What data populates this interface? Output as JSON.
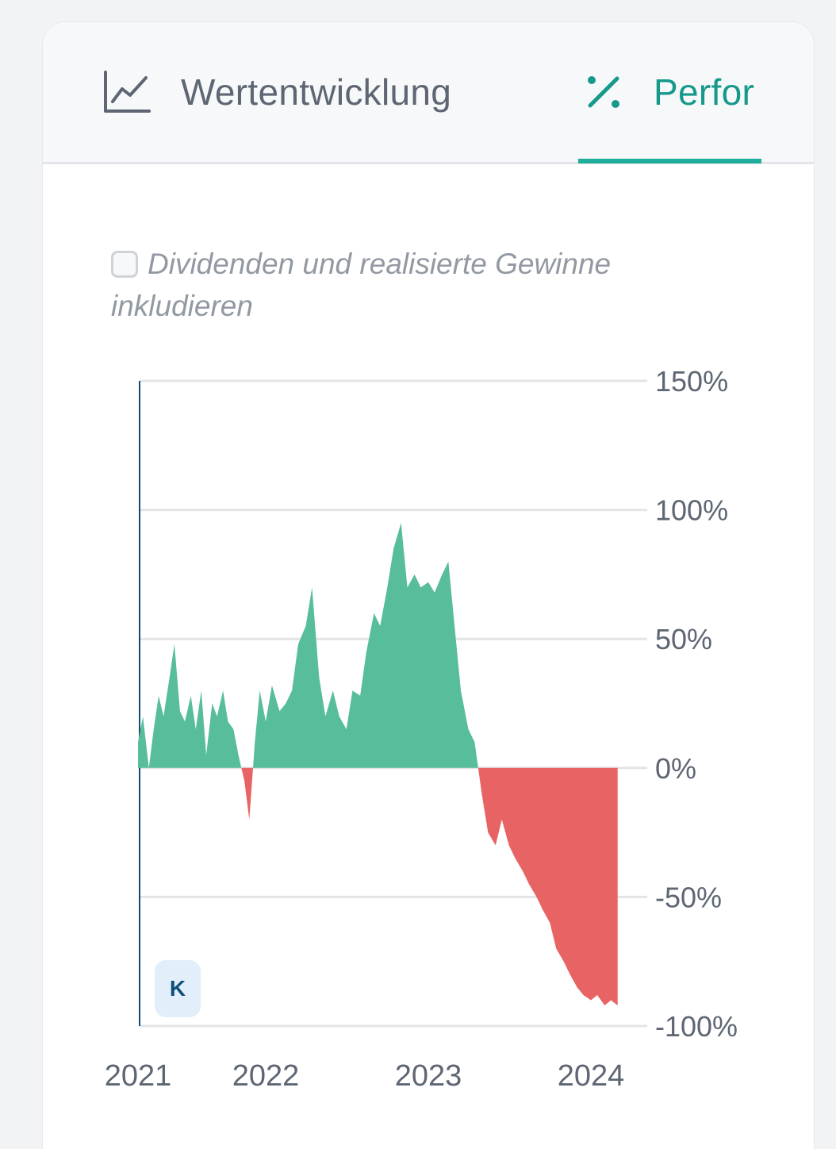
{
  "tabs": [
    {
      "label": "Wertentwicklung",
      "icon": "line-chart-icon",
      "active": false
    },
    {
      "label": "Perfor",
      "icon": "percent-icon",
      "active": true
    }
  ],
  "checkbox": {
    "label": "Dividenden und realisierte Gewinne inkludieren",
    "checked": false
  },
  "badge": {
    "label": "K"
  },
  "colors": {
    "positive": "#58bd9b",
    "negative": "#e86363",
    "accent": "#16998a",
    "axis": "#0f4f6e"
  },
  "chart_data": {
    "type": "area",
    "title": "",
    "xlabel": "",
    "ylabel": "",
    "x_ticks": [
      "2021",
      "2022",
      "2023",
      "2024"
    ],
    "y_ticks": [
      "150%",
      "100%",
      "50%",
      "0%",
      "-50%",
      "-100%"
    ],
    "ylim": [
      -100,
      150
    ],
    "grid": true,
    "baseline": 0,
    "series": [
      {
        "x": [
          "2021-01-01",
          "2021-01-15",
          "2021-02-01",
          "2021-02-15",
          "2021-03-01",
          "2021-03-15",
          "2021-04-01",
          "2021-04-15",
          "2021-05-01",
          "2021-05-15",
          "2021-06-01",
          "2021-06-15",
          "2021-07-01",
          "2021-07-15",
          "2021-08-01",
          "2021-08-15",
          "2021-09-01",
          "2021-09-15",
          "2021-10-01",
          "2021-10-15",
          "2021-11-01",
          "2021-11-15",
          "2021-12-01",
          "2021-12-15",
          "2022-01-01",
          "2022-01-15",
          "2022-02-01",
          "2022-02-15",
          "2022-03-01",
          "2022-03-15",
          "2022-04-01",
          "2022-04-15",
          "2022-05-01",
          "2022-05-15",
          "2022-06-01",
          "2022-06-15",
          "2022-07-01",
          "2022-07-15",
          "2022-08-01",
          "2022-08-15",
          "2022-09-01",
          "2022-09-15",
          "2022-10-01",
          "2022-10-15",
          "2022-11-01",
          "2022-11-15",
          "2022-12-01",
          "2022-12-15",
          "2023-01-01",
          "2023-01-15",
          "2023-02-01",
          "2023-02-15",
          "2023-03-01",
          "2023-03-15",
          "2023-04-01",
          "2023-04-15",
          "2023-05-01",
          "2023-05-15",
          "2023-06-01",
          "2023-06-15",
          "2023-07-01",
          "2023-07-15",
          "2023-08-01",
          "2023-08-15",
          "2023-09-01",
          "2023-09-15",
          "2023-10-01",
          "2023-10-15",
          "2023-11-01",
          "2023-11-15",
          "2023-12-01",
          "2023-12-15",
          "2024-01-01",
          "2024-01-15",
          "2024-02-01",
          "2024-02-15",
          "2024-03-01"
        ],
        "values": [
          10,
          20,
          0,
          15,
          28,
          20,
          35,
          48,
          22,
          18,
          28,
          15,
          30,
          5,
          25,
          20,
          30,
          18,
          15,
          5,
          -5,
          -20,
          10,
          30,
          18,
          32,
          22,
          25,
          30,
          48,
          55,
          70,
          35,
          20,
          30,
          20,
          15,
          30,
          28,
          45,
          60,
          55,
          70,
          85,
          95,
          70,
          75,
          70,
          72,
          68,
          75,
          80,
          55,
          30,
          15,
          10,
          -10,
          -25,
          -30,
          -20,
          -30,
          -35,
          -40,
          -45,
          -50,
          -55,
          -60,
          -70,
          -75,
          -80,
          -85,
          -88,
          -90,
          -88,
          -92,
          -90,
          -92
        ]
      }
    ]
  }
}
